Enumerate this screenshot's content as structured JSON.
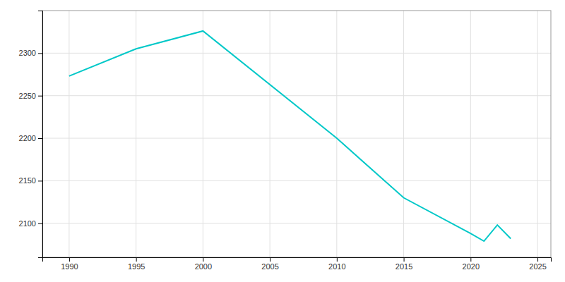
{
  "chart_data": {
    "type": "line",
    "x": [
      1990,
      1995,
      2000,
      2010,
      2015,
      2020,
      2021,
      2022,
      2023
    ],
    "values": [
      2273,
      2305,
      2326,
      2200,
      2130,
      2088,
      2079,
      2098,
      2082
    ],
    "color": "#00C8C8",
    "xlim": [
      1988,
      2026
    ],
    "ylim": [
      2060,
      2350
    ],
    "xticks": [
      1990,
      1995,
      2000,
      2005,
      2010,
      2015,
      2020,
      2025
    ],
    "yticks": [
      2100,
      2150,
      2200,
      2250,
      2300
    ],
    "grid": true
  }
}
